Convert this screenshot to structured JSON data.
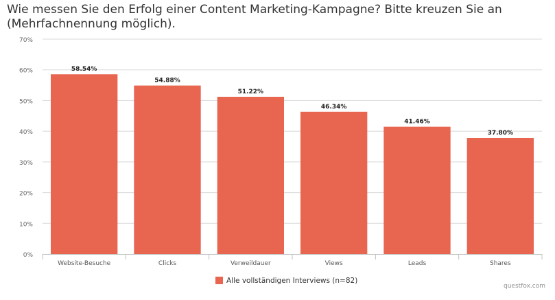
{
  "chart_data": {
    "type": "bar",
    "title": "Wie messen Sie den Erfolg einer Content Marketing-Kampagne? Bitte kreuzen Sie an (Mehrfachnennung möglich).",
    "categories": [
      "Website-Besuche",
      "Clicks",
      "Verweildauer",
      "Views",
      "Leads",
      "Shares"
    ],
    "series": [
      {
        "name": "Alle vollständigen Interviews (n=82)",
        "values": [
          58.54,
          54.88,
          51.22,
          46.34,
          41.46,
          37.8
        ],
        "color": "#E8654F"
      }
    ],
    "data_labels": [
      "58.54%",
      "54.88%",
      "51.22%",
      "46.34%",
      "41.46%",
      "37.80%"
    ],
    "ylim": [
      0,
      70
    ],
    "yticks": [
      "0%",
      "10%",
      "20%",
      "30%",
      "40%",
      "50%",
      "60%",
      "70%"
    ],
    "xlabel": "",
    "ylabel": "",
    "grid": true,
    "legend": "bottom-center"
  },
  "credit": "questfox.com"
}
